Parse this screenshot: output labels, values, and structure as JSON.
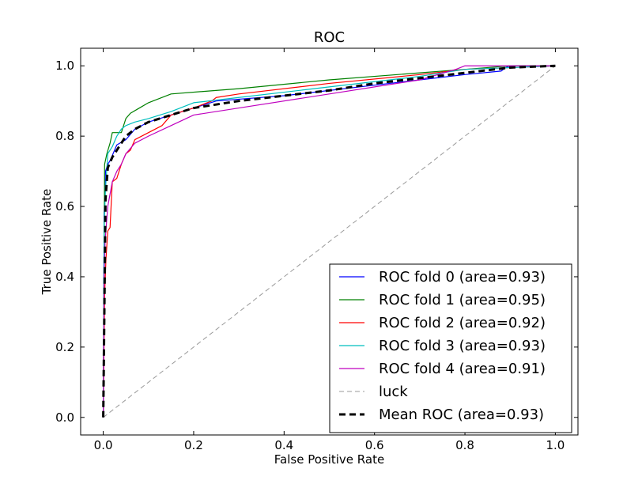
{
  "chart_data": {
    "type": "line",
    "title": "ROC",
    "xlabel": "False Positive Rate",
    "ylabel": "True Positive Rate",
    "xlim": [
      -0.05,
      1.05
    ],
    "ylim": [
      -0.05,
      1.05
    ],
    "xticks": [
      "0.0",
      "0.2",
      "0.4",
      "0.6",
      "0.8",
      "1.0"
    ],
    "yticks": [
      "0.0",
      "0.2",
      "0.4",
      "0.6",
      "0.8",
      "1.0"
    ],
    "grid": false,
    "legend": {
      "position": "lower-right"
    },
    "series": [
      {
        "name": "ROC fold 0 (area=0.93)",
        "color": "#0000ff",
        "style": "solid",
        "x": [
          0,
          0.002,
          0.005,
          0.01,
          0.015,
          0.02,
          0.025,
          0.03,
          0.05,
          0.07,
          0.1,
          0.15,
          0.2,
          0.25,
          0.3,
          0.4,
          0.5,
          0.6,
          0.7,
          0.8,
          0.88,
          0.89,
          0.9,
          1.0
        ],
        "y": [
          0,
          0.58,
          0.7,
          0.72,
          0.73,
          0.745,
          0.76,
          0.775,
          0.79,
          0.82,
          0.84,
          0.86,
          0.88,
          0.9,
          0.905,
          0.915,
          0.93,
          0.945,
          0.96,
          0.975,
          0.985,
          0.995,
          1.0,
          1.0
        ]
      },
      {
        "name": "ROC fold 1 (area=0.95)",
        "color": "#008000",
        "style": "solid",
        "x": [
          0,
          0.003,
          0.008,
          0.015,
          0.02,
          0.03,
          0.04,
          0.045,
          0.05,
          0.06,
          0.08,
          0.1,
          0.15,
          0.3,
          0.5,
          0.7,
          0.8,
          0.9,
          1.0
        ],
        "y": [
          0,
          0.72,
          0.75,
          0.78,
          0.81,
          0.81,
          0.81,
          0.83,
          0.85,
          0.865,
          0.88,
          0.895,
          0.92,
          0.935,
          0.96,
          0.98,
          0.99,
          1.0,
          1.0
        ]
      },
      {
        "name": "ROC fold 2 (area=0.92)",
        "color": "#ff0000",
        "style": "solid",
        "x": [
          0,
          0.003,
          0.006,
          0.01,
          0.015,
          0.02,
          0.03,
          0.04,
          0.05,
          0.06,
          0.07,
          0.1,
          0.13,
          0.15,
          0.2,
          0.24,
          0.25,
          0.3,
          0.5,
          0.7,
          0.8,
          1.0
        ],
        "y": [
          0,
          0.35,
          0.45,
          0.53,
          0.54,
          0.67,
          0.68,
          0.72,
          0.75,
          0.76,
          0.79,
          0.81,
          0.83,
          0.86,
          0.88,
          0.9,
          0.91,
          0.92,
          0.95,
          0.975,
          0.99,
          1.0
        ]
      },
      {
        "name": "ROC fold 3 (area=0.93)",
        "color": "#00bfbf",
        "style": "solid",
        "x": [
          0,
          0.002,
          0.005,
          0.01,
          0.02,
          0.03,
          0.04,
          0.05,
          0.07,
          0.1,
          0.15,
          0.2,
          0.3,
          0.5,
          0.7,
          0.8,
          1.0
        ],
        "y": [
          0,
          0.55,
          0.65,
          0.75,
          0.77,
          0.8,
          0.82,
          0.83,
          0.84,
          0.85,
          0.87,
          0.895,
          0.91,
          0.94,
          0.97,
          0.99,
          1.0
        ]
      },
      {
        "name": "ROC fold 4 (area=0.91)",
        "color": "#bf00bf",
        "style": "solid",
        "x": [
          0,
          0.002,
          0.004,
          0.01,
          0.02,
          0.03,
          0.04,
          0.05,
          0.07,
          0.1,
          0.15,
          0.2,
          0.3,
          0.5,
          0.7,
          0.78,
          0.8,
          1.0
        ],
        "y": [
          0,
          0.4,
          0.5,
          0.6,
          0.67,
          0.7,
          0.72,
          0.75,
          0.78,
          0.8,
          0.83,
          0.86,
          0.88,
          0.92,
          0.96,
          0.99,
          1.0,
          1.0
        ]
      },
      {
        "name": "luck",
        "color": "#999999",
        "style": "dashed",
        "x": [
          0,
          1
        ],
        "y": [
          0,
          1
        ]
      },
      {
        "name": "Mean ROC (area=0.93)",
        "color": "#000000",
        "style": "bold-dashed",
        "x": [
          0,
          0.005,
          0.01,
          0.02,
          0.03,
          0.04,
          0.05,
          0.07,
          0.1,
          0.15,
          0.2,
          0.3,
          0.4,
          0.5,
          0.6,
          0.7,
          0.8,
          0.9,
          1.0
        ],
        "y": [
          0,
          0.62,
          0.71,
          0.74,
          0.76,
          0.78,
          0.8,
          0.82,
          0.84,
          0.86,
          0.88,
          0.9,
          0.915,
          0.93,
          0.95,
          0.965,
          0.98,
          0.995,
          1.0
        ]
      }
    ]
  }
}
